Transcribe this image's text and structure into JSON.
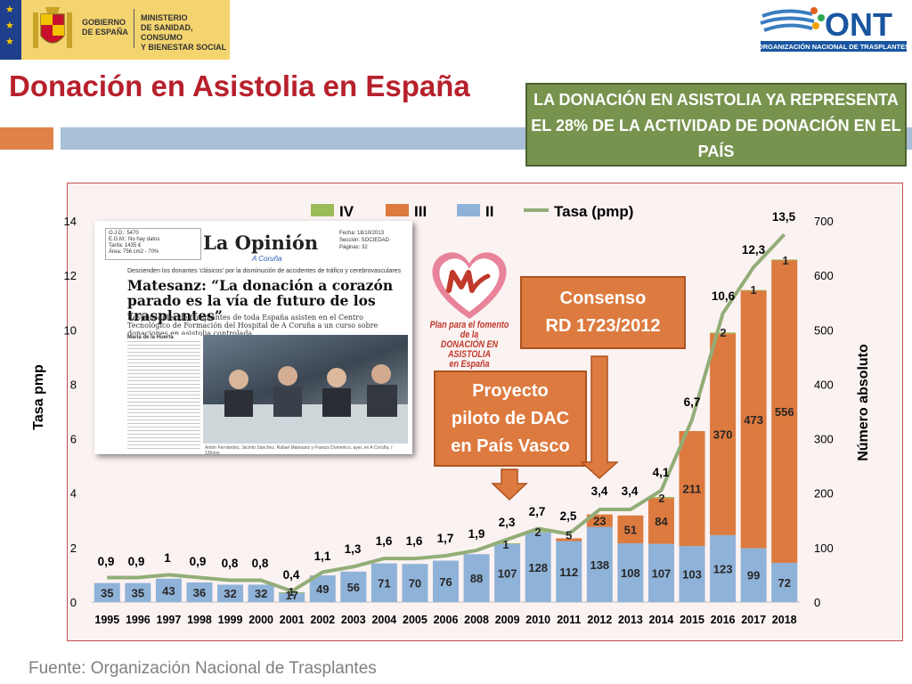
{
  "header": {
    "gov_org": "GOBIERNO\nDE ESPAÑA",
    "ministry": "MINISTERIO\nDE SANIDAD, CONSUMO\nY BIENESTAR SOCIAL",
    "ont_logo_text": "ONT",
    "ont_subtitle": "ORGANIZACIÓN NACIONAL DE TRASPLANTES"
  },
  "slide": {
    "title": "Donación en Asistolia en España",
    "callout": "LA DONACIÓN EN ASISTOLIA YA REPRESENTA EL 28% DE LA ACTIVIDAD DE DONACIÓN EN EL PAÍS",
    "source": "Fuente: Organización Nacional de Trasplantes"
  },
  "annotations": {
    "consenso": "Consenso\nRD 1723/2012",
    "proyecto": "Proyecto\npiloto de DAC\nen País Vasco"
  },
  "newspaper": {
    "meta": "O.J.D.:      5470\nE.G.M.:     No hay datos\nTarifa:      1435 €\nÁrea:        756 cm2 - 70%",
    "masthead": "La Opinión",
    "city": "A Coruña",
    "date": "Fecha:       18/10/2013\nSección:    SOCIEDAD\nPáginas:    32",
    "kicker": "Descienden los donantes 'clásicos' por la disminución de accidentes de tráfico y cerebrovasculares",
    "headline": "Matesanz: “La donación a corazón parado es la vía de futuro de los trasplantes”",
    "subhead": "Responsables de trasplantes de toda España asisten en el Centro Tecnológico de Formación del Hospital de A Coruña a un curso sobre donaciones en asistolia controlada",
    "byline": "María de la Huerta",
    "caption": "Antón Fernández, Jacinto Sánchez, Rafael Matesanz y Francis Domenico, ayer, en A Coruña. / 13foros"
  },
  "plan_logo": {
    "text": "Plan para el fomento de la\nDONACIÓN EN ASISTOLIA\nen España",
    "colors": {
      "red": "#c0392b",
      "pink": "#e8839a"
    }
  },
  "colors": {
    "iv": "#9bbb59",
    "iii": "#dd7a3f",
    "ii": "#8fb2d8",
    "line": "#93ad77",
    "title": "#b7202c",
    "callout_bg": "#77934e"
  },
  "chart_data": {
    "type": "bar",
    "stacked": true,
    "categories": [
      "1995",
      "1996",
      "1997",
      "1998",
      "1999",
      "2000",
      "2001",
      "2002",
      "2003",
      "2004",
      "2005",
      "2006",
      "2008",
      "2009",
      "2010",
      "2011",
      "2012",
      "2013",
      "2014",
      "2015",
      "2016",
      "2017",
      "2018"
    ],
    "series": [
      {
        "name": "II",
        "axis": "right",
        "values": [
          35,
          35,
          43,
          36,
          32,
          32,
          17,
          49,
          56,
          71,
          70,
          76,
          88,
          107,
          128,
          112,
          138,
          108,
          107,
          103,
          123,
          99,
          72
        ],
        "labels": [
          "35",
          "35",
          "43",
          "36",
          "32",
          "32",
          "17",
          "49",
          "56",
          "71",
          "70",
          "76",
          "88",
          "107",
          "128",
          "112",
          "138",
          "108",
          "107",
          "103",
          "123",
          "99",
          "72"
        ]
      },
      {
        "name": "III",
        "axis": "right",
        "values": [
          0,
          0,
          0,
          0,
          0,
          0,
          0,
          0,
          0,
          0,
          0,
          0,
          0,
          0,
          0,
          5,
          23,
          51,
          84,
          211,
          370,
          473,
          556
        ],
        "labels": [
          "",
          "",
          "",
          "",
          "",
          "",
          "",
          "",
          "",
          "",
          "",
          "",
          "",
          "",
          "",
          "5",
          "23",
          "51",
          "84",
          "211",
          "370",
          "473",
          "556"
        ]
      },
      {
        "name": "IV",
        "axis": "right",
        "values": [
          0,
          0,
          0,
          0,
          0,
          0,
          1,
          0,
          0,
          0,
          0,
          0,
          0,
          1,
          2,
          0,
          0,
          0,
          2,
          0,
          2,
          1,
          1
        ],
        "labels": [
          "",
          "",
          "",
          "",
          "",
          "",
          "1",
          "",
          "",
          "",
          "",
          "",
          "",
          "1",
          "2",
          "",
          "",
          "",
          "2",
          "",
          "2",
          "1",
          "1"
        ]
      },
      {
        "name": "Tasa (pmp)",
        "type": "line",
        "axis": "left",
        "values": [
          0.9,
          0.9,
          1,
          0.9,
          0.8,
          0.8,
          0.4,
          1.1,
          1.3,
          1.6,
          1.6,
          1.7,
          1.9,
          2.3,
          2.7,
          2.5,
          3.4,
          3.4,
          4.1,
          6.7,
          10.6,
          12.3,
          13.5
        ],
        "labels": [
          "0,9",
          "0,9",
          "1",
          "0,9",
          "0,8",
          "0,8",
          "0,4",
          "1,1",
          "1,3",
          "1,6",
          "1,6",
          "1,7",
          "1,9",
          "2,3",
          "2,7",
          "2,5",
          "3,4",
          "3,4",
          "4,1",
          "6,7",
          "10,6",
          "12,3",
          "13,5"
        ]
      }
    ],
    "legend": [
      "IV",
      "III",
      "II",
      "Tasa (pmp)"
    ],
    "legend_position": "top",
    "y_left": {
      "label": "Tasa pmp",
      "min": 0,
      "max": 14,
      "ticks": [
        0,
        2,
        4,
        6,
        8,
        10,
        12,
        14
      ]
    },
    "y_right": {
      "label": "Número absoluto",
      "min": 0,
      "max": 700,
      "ticks": [
        0,
        100,
        200,
        300,
        400,
        500,
        600,
        700
      ]
    }
  }
}
